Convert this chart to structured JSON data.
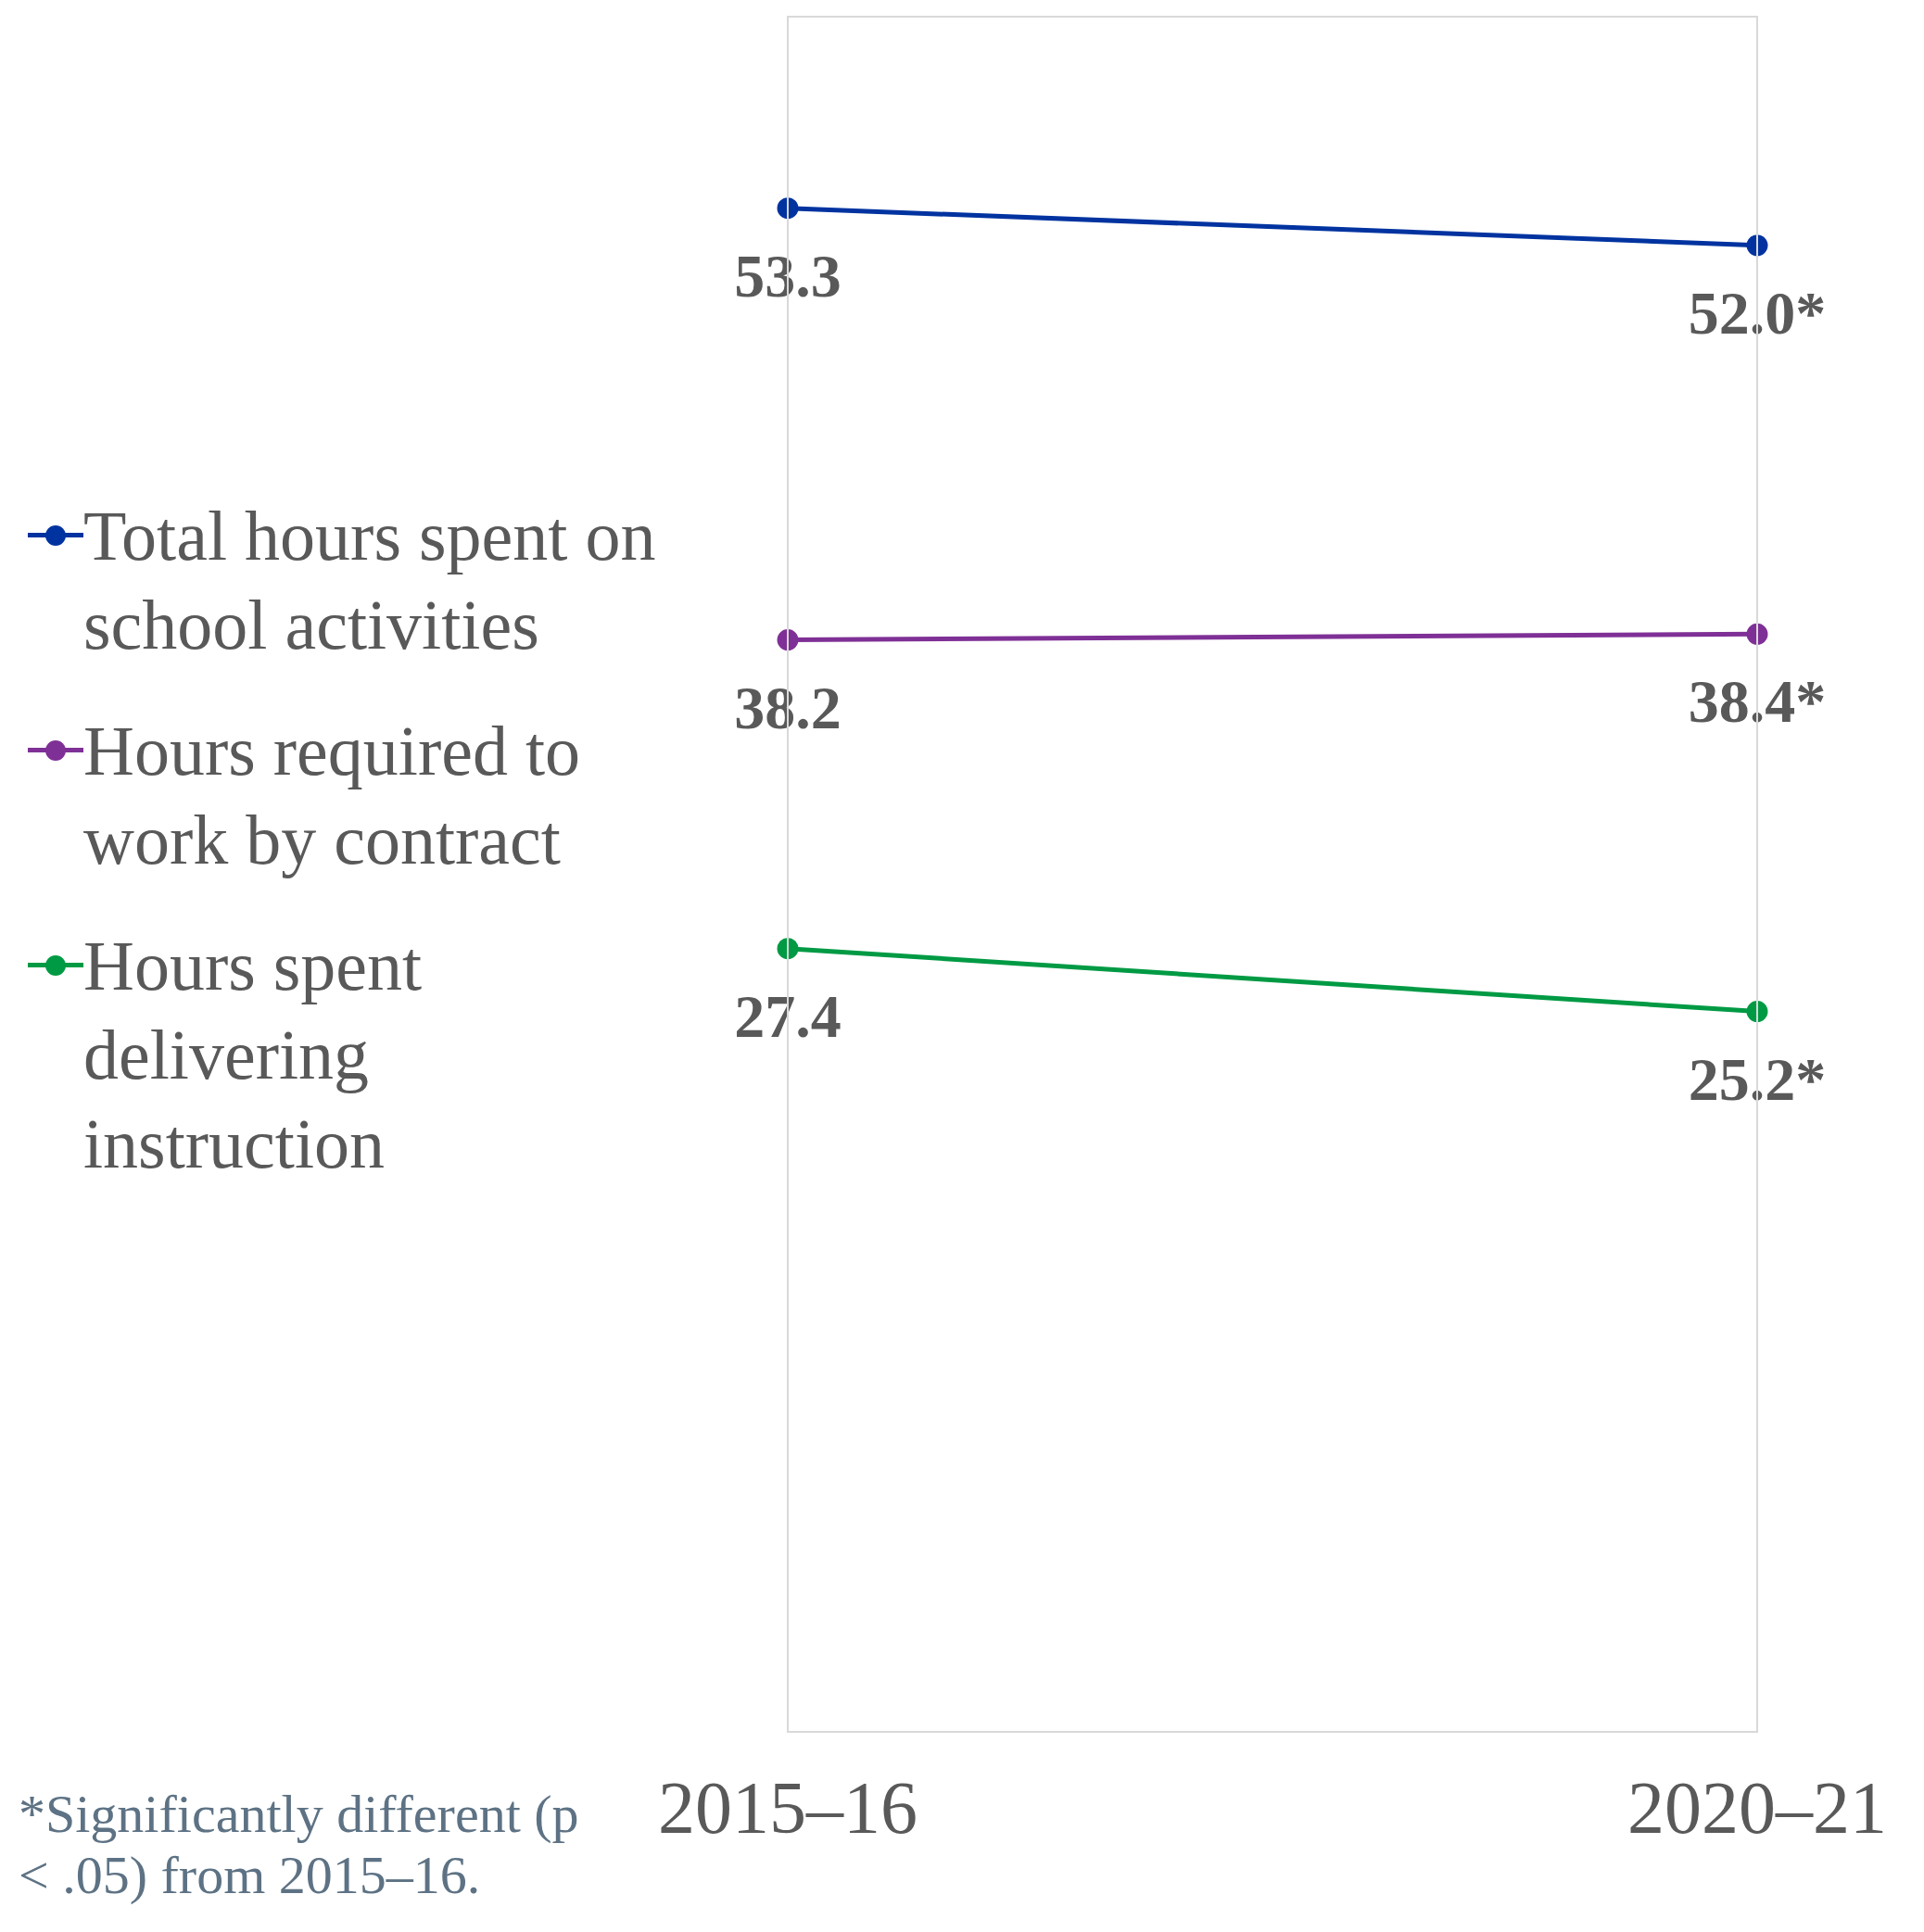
{
  "chart_data": {
    "type": "line",
    "categories": [
      "2015–16",
      "2020–21"
    ],
    "series": [
      {
        "name": "Total hours spent on school activities",
        "color": "#0033a0",
        "values": [
          53.3,
          52.0
        ],
        "value_labels": [
          "53.3",
          "52.0*"
        ]
      },
      {
        "name": "Hours required to work by contract",
        "color": "#7f3096",
        "values": [
          38.2,
          38.4
        ],
        "value_labels": [
          "38.2",
          "38.4*"
        ]
      },
      {
        "name": "Hours spent delivering instruction",
        "color": "#009a44",
        "values": [
          27.4,
          25.2
        ],
        "value_labels": [
          "27.4",
          "25.2*"
        ]
      }
    ],
    "legend": "left",
    "marker": "circle",
    "line_style": "solid",
    "annotations": [
      "*Significantly different (p < .05) from 2015–16."
    ]
  }
}
